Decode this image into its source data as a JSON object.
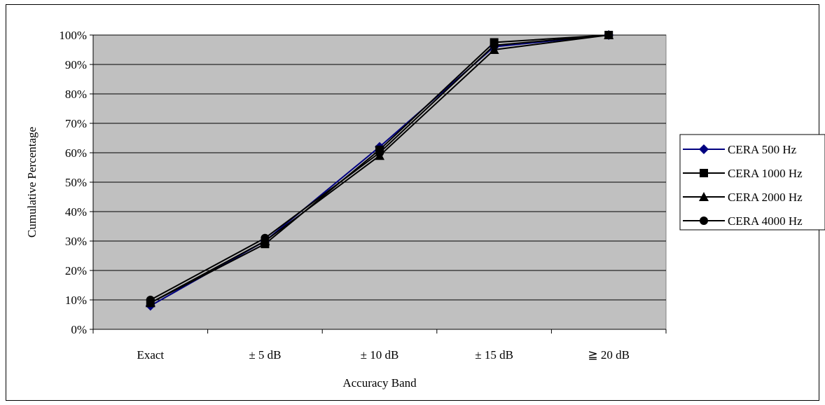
{
  "chart_data": {
    "type": "line",
    "categories": [
      "Exact",
      "± 5 dB",
      "± 10  dB",
      "± 15  dB",
      "≧ 20 dB"
    ],
    "xlabel": "Accuracy Band",
    "ylabel": "Cumulative Percentage",
    "ylim": [
      0,
      100
    ],
    "ytick_labels": [
      "0%",
      "10%",
      "20%",
      "30%",
      "40%",
      "50%",
      "60%",
      "70%",
      "80%",
      "90%",
      "100%"
    ],
    "grid": "horizontal",
    "legend_position": "right",
    "plot_background": "#c0c0c0",
    "series": [
      {
        "name": "CERA 500 Hz",
        "marker": "diamond",
        "color": "#000080",
        "values": [
          8,
          30,
          62,
          96,
          100
        ]
      },
      {
        "name": "CERA 1000 Hz",
        "marker": "square",
        "color": "#000000",
        "values": [
          9,
          29,
          61,
          97.5,
          100
        ]
      },
      {
        "name": "CERA 2000 Hz",
        "marker": "triangle",
        "color": "#000000",
        "values": [
          9,
          30,
          59,
          95,
          100
        ]
      },
      {
        "name": "CERA 4000 Hz",
        "marker": "circle",
        "color": "#000000",
        "values": [
          10,
          31,
          60,
          96.5,
          100
        ]
      }
    ]
  }
}
